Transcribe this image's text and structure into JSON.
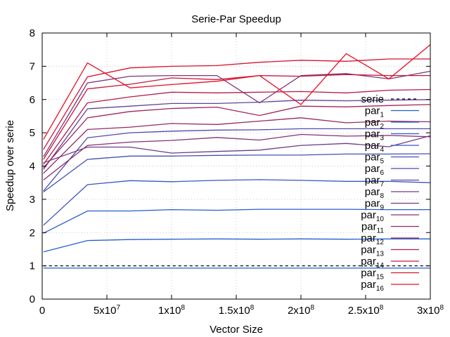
{
  "chart_data": {
    "type": "line",
    "title": "Serie-Par Speedup",
    "xlabel": "Vector Size",
    "ylabel": "Speedup over serie",
    "xlim": [
      0,
      300000000
    ],
    "ylim": [
      0,
      8
    ],
    "xticks": [
      {
        "value": 0,
        "label": "0",
        "sup": ""
      },
      {
        "value": 50000000,
        "label": "5x10",
        "sup": "7"
      },
      {
        "value": 100000000,
        "label": "1x10",
        "sup": "8"
      },
      {
        "value": 150000000,
        "label": "1.5x10",
        "sup": "8"
      },
      {
        "value": 200000000,
        "label": "2x10",
        "sup": "8"
      },
      {
        "value": 250000000,
        "label": "2.5x10",
        "sup": "8"
      },
      {
        "value": 300000000,
        "label": "3x10",
        "sup": "8"
      }
    ],
    "yticks": [
      {
        "value": 0,
        "label": "0"
      },
      {
        "value": 1,
        "label": "1"
      },
      {
        "value": 2,
        "label": "2"
      },
      {
        "value": 3,
        "label": "3"
      },
      {
        "value": 4,
        "label": "4"
      },
      {
        "value": 5,
        "label": "5"
      },
      {
        "value": 6,
        "label": "6"
      },
      {
        "value": 7,
        "label": "7"
      },
      {
        "value": 8,
        "label": "8"
      }
    ],
    "grid": true,
    "legend_position": "right",
    "x": [
      1000000,
      35000000,
      68000000,
      100000000,
      135000000,
      168000000,
      200000000,
      235000000,
      268000000,
      300000000
    ],
    "series": [
      {
        "name": "serie",
        "label_main": "serie",
        "label_sub": "",
        "color": "#000000",
        "dashed": true,
        "values": [
          1,
          1,
          1,
          1,
          1,
          1,
          1,
          1,
          1,
          1
        ]
      },
      {
        "name": "par1",
        "label_main": "par",
        "label_sub": "1",
        "color": "#1f5fd0",
        "dashed": false,
        "values": [
          0.93,
          0.93,
          0.93,
          0.93,
          0.93,
          0.93,
          0.93,
          0.93,
          0.93,
          0.93
        ]
      },
      {
        "name": "par2",
        "label_main": "par",
        "label_sub": "2",
        "color": "#2160cc",
        "dashed": false,
        "values": [
          1.42,
          1.76,
          1.79,
          1.8,
          1.81,
          1.8,
          1.81,
          1.8,
          1.81,
          1.81
        ]
      },
      {
        "name": "par3",
        "label_main": "par",
        "label_sub": "3",
        "color": "#2a5cc8",
        "dashed": false,
        "values": [
          1.98,
          2.65,
          2.65,
          2.69,
          2.67,
          2.7,
          2.7,
          2.7,
          2.69,
          2.69
        ]
      },
      {
        "name": "par4",
        "label_main": "par",
        "label_sub": "4",
        "color": "#3a55c0",
        "dashed": false,
        "values": [
          2.22,
          3.44,
          3.56,
          3.53,
          3.57,
          3.59,
          3.57,
          3.54,
          3.54,
          3.5
        ]
      },
      {
        "name": "par5",
        "label_main": "par",
        "label_sub": "5",
        "color": "#4450b6",
        "dashed": false,
        "values": [
          3.22,
          4.2,
          4.3,
          4.3,
          4.32,
          4.33,
          4.33,
          4.36,
          4.36,
          4.37
        ]
      },
      {
        "name": "par6",
        "label_main": "par",
        "label_sub": "6",
        "color": "#514aaa",
        "dashed": false,
        "values": [
          3.25,
          4.85,
          5.0,
          5.05,
          5.08,
          5.09,
          5.12,
          5.12,
          5.12,
          5.12
        ]
      },
      {
        "name": "par7",
        "label_main": "par",
        "label_sub": "7",
        "color": "#5e4498",
        "dashed": false,
        "values": [
          3.9,
          5.72,
          5.8,
          5.88,
          5.88,
          5.92,
          5.98,
          5.96,
          5.98,
          6.0
        ]
      },
      {
        "name": "par8",
        "label_main": "par",
        "label_sub": "8",
        "color": "#6b3c8a",
        "dashed": false,
        "values": [
          4.1,
          4.57,
          4.57,
          4.39,
          4.44,
          4.48,
          4.62,
          4.68,
          4.58,
          4.91
        ]
      },
      {
        "name": "par9",
        "label_main": "par",
        "label_sub": "9",
        "color": "#7a367c",
        "dashed": false,
        "values": [
          4.28,
          6.5,
          6.7,
          6.72,
          6.72,
          5.9,
          6.72,
          6.78,
          6.62,
          6.85
        ]
      },
      {
        "name": "par10",
        "label_main": "par",
        "label_sub": "10",
        "color": "#86306e",
        "dashed": false,
        "values": [
          3.58,
          4.62,
          4.72,
          4.77,
          4.86,
          4.78,
          4.95,
          4.9,
          4.92,
          4.88
        ]
      },
      {
        "name": "par11",
        "label_main": "par",
        "label_sub": "11",
        "color": "#942a62",
        "dashed": false,
        "values": [
          3.78,
          5.1,
          5.17,
          5.28,
          5.25,
          5.35,
          5.45,
          5.3,
          5.35,
          5.33
        ]
      },
      {
        "name": "par12",
        "label_main": "par",
        "label_sub": "12",
        "color": "#a22456",
        "dashed": false,
        "values": [
          3.95,
          5.45,
          5.64,
          5.73,
          5.77,
          5.52,
          5.8,
          5.78,
          5.82,
          5.85
        ]
      },
      {
        "name": "par13",
        "label_main": "par",
        "label_sub": "13",
        "color": "#b41d48",
        "dashed": false,
        "values": [
          4.05,
          5.9,
          6.08,
          6.22,
          6.2,
          6.22,
          6.24,
          6.2,
          6.28,
          6.3
        ]
      },
      {
        "name": "par14",
        "label_main": "par",
        "label_sub": "14",
        "color": "#c6173a",
        "dashed": false,
        "values": [
          4.2,
          6.32,
          6.46,
          6.65,
          6.6,
          6.72,
          6.7,
          6.75,
          6.72,
          6.72
        ]
      },
      {
        "name": "par15",
        "label_main": "par",
        "label_sub": "15",
        "color": "#d61230",
        "dashed": false,
        "values": [
          4.5,
          6.68,
          6.95,
          7.0,
          7.02,
          7.12,
          7.18,
          7.15,
          7.22,
          7.22
        ]
      },
      {
        "name": "par16",
        "label_main": "par",
        "label_sub": "16",
        "color": "#e80e22",
        "dashed": false,
        "values": [
          4.8,
          7.1,
          6.35,
          6.45,
          6.55,
          6.72,
          5.85,
          7.38,
          6.62,
          7.65
        ]
      }
    ]
  }
}
